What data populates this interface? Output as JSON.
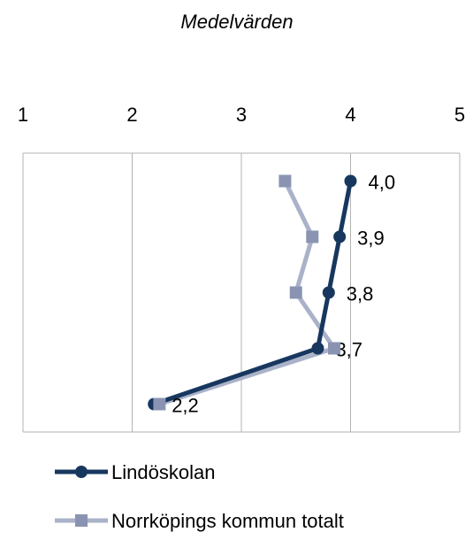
{
  "chart_data": {
    "type": "line",
    "orientation": "horizontal",
    "title": "Medelvärden",
    "categories": [
      null,
      null,
      null,
      null,
      null
    ],
    "xlim": [
      1,
      5
    ],
    "xticks": [
      1,
      2,
      3,
      4,
      5
    ],
    "grid": true,
    "legend": "bottom",
    "series": [
      {
        "name": "Lindöskolan",
        "color": "#17375e",
        "marker": "circle",
        "values": [
          4.0,
          3.9,
          3.8,
          3.7,
          2.2
        ],
        "value_labels": [
          "4,0",
          "3,9",
          "3,8",
          "3,7",
          "2,2"
        ]
      },
      {
        "name": "Norrköpings kommun totalt",
        "color": "#a9b2c8",
        "marker_color": "#8a94b2",
        "marker": "square",
        "values": [
          3.4,
          3.65,
          3.5,
          3.85,
          2.25
        ]
      }
    ]
  }
}
